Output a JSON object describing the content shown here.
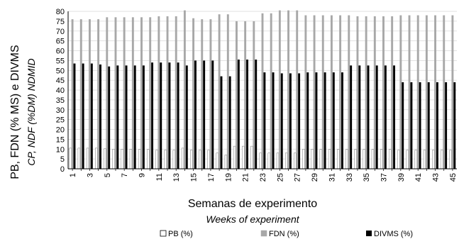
{
  "chart_data": {
    "type": "bar",
    "y_axis_label": "PB, FDN (% MS) e DIVMS",
    "y_axis_label_en": "CP, NDF (%DM) NDMID",
    "x_axis_label": "Semanas de experimento",
    "x_axis_label_en": "Weeks of experiment",
    "ylim": [
      0,
      80
    ],
    "y_ticks": [
      0,
      5,
      10,
      15,
      20,
      25,
      30,
      35,
      40,
      45,
      50,
      55,
      60,
      65,
      70,
      75,
      80
    ],
    "x": [
      1,
      2,
      3,
      4,
      5,
      6,
      7,
      8,
      9,
      10,
      11,
      12,
      13,
      14,
      15,
      16,
      17,
      18,
      19,
      20,
      21,
      22,
      23,
      24,
      25,
      26,
      27,
      28,
      29,
      30,
      31,
      32,
      33,
      34,
      35,
      36,
      37,
      38,
      39,
      40,
      41,
      42,
      43,
      44,
      45
    ],
    "x_tick_labels": [
      "1",
      "3",
      "5",
      "7",
      "9",
      "11",
      "13",
      "15",
      "17",
      "19",
      "21",
      "23",
      "25",
      "27",
      "29",
      "31",
      "33",
      "35",
      "37",
      "39",
      "41",
      "43",
      "45"
    ],
    "legend_position": "bottom",
    "series": [
      {
        "name": "PB (%)",
        "color": "#ffffff",
        "values": [
          10.5,
          10.5,
          10.5,
          10.5,
          10.2,
          10,
          10,
          10,
          9.8,
          9.8,
          9.5,
          9.5,
          9.5,
          10.5,
          9.5,
          9.5,
          9.5,
          8,
          7,
          11.5,
          11.5,
          11.5,
          8,
          8,
          8,
          8,
          8,
          10,
          10,
          9.8,
          9.8,
          9.8,
          9.8,
          9.8,
          9.8,
          9.8,
          9.8,
          9.8,
          9.5,
          9.5,
          9.5,
          9.5,
          9.5,
          9.5,
          9.5
        ]
      },
      {
        "name": "FDN (%)",
        "color": "#a8a8a8",
        "values": [
          76,
          76,
          76,
          76,
          77,
          77,
          77,
          77,
          77,
          77,
          77.5,
          77.5,
          77.5,
          80.5,
          76.5,
          76,
          76,
          78.5,
          78.5,
          75,
          75,
          75,
          79,
          79,
          80.5,
          80.5,
          80.5,
          78,
          78,
          78,
          78,
          78,
          78,
          77.5,
          77.5,
          77.5,
          77.5,
          77.5,
          78,
          78,
          78,
          78,
          78,
          78,
          78
        ]
      },
      {
        "name": "DIVMS (%)",
        "color": "#000000",
        "values": [
          53.5,
          53.5,
          53.5,
          53,
          52,
          52.5,
          52.5,
          52.5,
          52.5,
          54,
          54,
          54,
          54,
          52.5,
          55,
          55,
          55,
          47,
          47,
          55.5,
          55.5,
          55.5,
          49,
          49,
          48.5,
          48.5,
          48.5,
          49,
          49,
          49,
          49,
          49,
          52.5,
          52.5,
          52.5,
          52.5,
          52.5,
          52.5,
          44,
          44,
          44,
          44,
          44,
          44,
          44
        ]
      }
    ]
  }
}
